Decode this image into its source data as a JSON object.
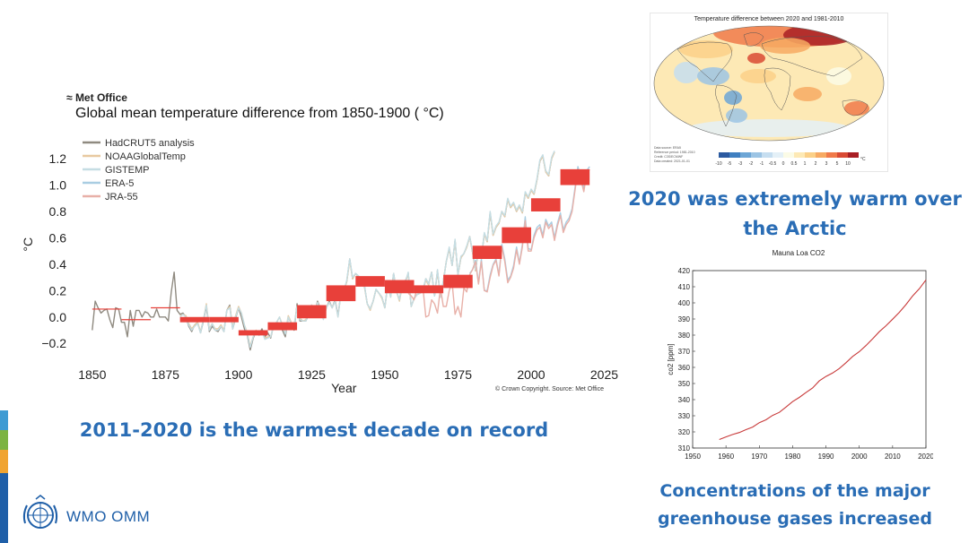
{
  "header": {
    "brand": "Met Office",
    "title": "Global mean temperature difference from 1850-1900 ( °C)"
  },
  "credit": "© Crown Copyright. Source: Met Office",
  "headlines": {
    "decade": "2011-2020 is the warmest decade on record",
    "arctic": "2020 was extremely warm over the Arctic",
    "ghg": "Concentrations of the major greenhouse gases increased"
  },
  "footer": {
    "org": "WMO OMM"
  },
  "colors": {
    "accent": "#2a6db5",
    "decade_bar": "#e8403a",
    "co2_line": "#c83a3a"
  },
  "chart_data": [
    {
      "type": "line",
      "title": "Global mean temperature difference from 1850-1900 ( °C)",
      "xlabel": "Year",
      "ylabel": "°C",
      "xlim": [
        1843,
        2027
      ],
      "ylim": [
        -0.28,
        1.35
      ],
      "xticks": [
        1850,
        1875,
        1900,
        1925,
        1950,
        1975,
        2000,
        2025
      ],
      "yticks": [
        -0.2,
        0.0,
        0.2,
        0.4,
        0.6,
        0.8,
        1.0,
        1.2
      ],
      "ytick_labels": [
        "−0.2",
        "0.0",
        "0.2",
        "0.4",
        "0.6",
        "0.8",
        "1.0",
        "1.2"
      ],
      "legend": [
        "HadCRUT5 analysis",
        "NOAAGlobalTemp",
        "GISTEMP",
        "ERA-5",
        "JRA-55"
      ],
      "legend_position": "top-left",
      "series": [
        {
          "name": "HadCRUT5 analysis",
          "color": "#8f8a80",
          "start_year": 1850,
          "values": [
            -0.1,
            0.12,
            0.07,
            0.03,
            0.05,
            0.06,
            -0.02,
            -0.08,
            0.07,
            0.06,
            -0.04,
            -0.04,
            -0.15,
            0.05,
            -0.07,
            0.05,
            0.05,
            0.0,
            0.04,
            0.03,
            0.0,
            0.0,
            0.06,
            0.0,
            0.0,
            0.0,
            -0.03,
            0.19,
            0.34,
            0.05,
            0.02,
            0.03,
            0.0,
            -0.07,
            -0.11,
            -0.06,
            -0.04,
            -0.12,
            -0.03,
            0.08,
            -0.11,
            -0.07,
            -0.1,
            -0.11,
            -0.07,
            -0.11,
            0.05,
            0.09,
            -0.09,
            -0.01,
            0.07,
            0.0,
            -0.09,
            -0.14,
            -0.25,
            -0.16,
            -0.11,
            -0.13,
            -0.09,
            -0.15,
            -0.12,
            -0.16,
            -0.06,
            -0.04,
            -0.05,
            -0.1,
            -0.15,
            0.0,
            -0.05,
            -0.1,
            0.1,
            -0.03,
            -0.03,
            -0.03,
            0.02,
            0.09,
            0.03,
            0.12,
            0.06,
            -0.01,
            0.07,
            0.12,
            0.07,
            0.13,
            0.01,
            0.18,
            0.2,
            0.27,
            0.44,
            0.29,
            0.33,
            0.31,
            0.25,
            0.24,
            0.1,
            0.06,
            0.12,
            0.21,
            0.18,
            0.15,
            0.07,
            0.25,
            0.16,
            0.33,
            0.19,
            0.13,
            0.25,
            0.27,
            0.33,
            0.08,
            0.14,
            0.17,
            0.18,
            0.2,
            0.29,
            0.25,
            0.34,
            0.16,
            0.35,
            0.15,
            0.27,
            0.42,
            0.52,
            0.39,
            0.58,
            0.32,
            0.45,
            0.48,
            0.53,
            0.61,
            0.49,
            0.35,
            0.52,
            0.45,
            0.63,
            0.57,
            0.79,
            0.62,
            0.68,
            0.71,
            0.8,
            0.76,
            0.89,
            0.83,
            0.86,
            0.8,
            0.84,
            0.79,
            0.94,
            0.9,
            0.96,
            0.93,
            1.04,
            1.18,
            1.22,
            1.1,
            1.07,
            1.2,
            1.25
          ]
        },
        {
          "name": "NOAAGlobalTemp",
          "color": "#e8c9a0",
          "start_year": 1880,
          "values": [
            0.01,
            0.02,
            0.01,
            -0.05,
            -0.09,
            -0.06,
            -0.04,
            -0.11,
            -0.02,
            0.1,
            -0.09,
            -0.05,
            -0.09,
            -0.09,
            -0.06,
            -0.1,
            0.05,
            0.08,
            -0.08,
            0.01,
            0.08,
            0.03,
            -0.06,
            -0.12,
            -0.22,
            -0.15,
            -0.1,
            -0.13,
            -0.11,
            -0.16,
            -0.15,
            -0.15,
            -0.06,
            -0.04,
            0.0,
            -0.06,
            -0.12,
            0.01,
            -0.04,
            -0.06,
            0.08,
            -0.01,
            -0.03,
            -0.02,
            0.03,
            0.09,
            0.03,
            0.11,
            0.05,
            -0.01,
            0.07,
            0.11,
            0.07,
            0.12,
            0.0,
            0.18,
            0.2,
            0.27,
            0.43,
            0.29,
            0.33,
            0.3,
            0.24,
            0.23,
            0.1,
            0.05,
            0.12,
            0.21,
            0.18,
            0.14,
            0.07,
            0.24,
            0.15,
            0.32,
            0.19,
            0.12,
            0.24,
            0.26,
            0.33,
            0.08,
            0.14,
            0.17,
            0.18,
            0.2,
            0.28,
            0.24,
            0.34,
            0.16,
            0.35,
            0.15,
            0.27,
            0.42,
            0.52,
            0.39,
            0.58,
            0.32,
            0.45,
            0.48,
            0.53,
            0.61,
            0.49,
            0.35,
            0.52,
            0.45,
            0.63,
            0.57,
            0.79,
            0.62,
            0.68,
            0.71,
            0.8,
            0.76,
            0.89,
            0.83,
            0.86,
            0.8,
            0.84,
            0.79,
            0.94,
            0.9,
            0.96,
            0.93,
            1.04,
            1.18,
            1.22,
            1.1,
            1.07,
            1.2,
            1.25
          ]
        },
        {
          "name": "GISTEMP",
          "color": "#c5dde3",
          "start_year": 1880,
          "values": [
            0.0,
            0.02,
            0.0,
            -0.06,
            -0.1,
            -0.07,
            -0.05,
            -0.12,
            -0.02,
            0.09,
            -0.1,
            -0.05,
            -0.1,
            -0.1,
            -0.07,
            -0.11,
            0.05,
            0.07,
            -0.09,
            0.0,
            0.07,
            0.03,
            -0.06,
            -0.13,
            -0.23,
            -0.15,
            -0.11,
            -0.14,
            -0.11,
            -0.17,
            -0.16,
            -0.15,
            -0.06,
            -0.04,
            0.0,
            -0.07,
            -0.13,
            0.0,
            -0.05,
            -0.07,
            0.08,
            -0.02,
            -0.03,
            -0.03,
            0.03,
            0.09,
            0.03,
            0.11,
            0.05,
            -0.02,
            0.07,
            0.11,
            0.07,
            0.12,
            0.0,
            0.18,
            0.2,
            0.28,
            0.44,
            0.3,
            0.33,
            0.31,
            0.25,
            0.24,
            0.1,
            0.06,
            0.12,
            0.21,
            0.18,
            0.15,
            0.07,
            0.25,
            0.15,
            0.33,
            0.19,
            0.13,
            0.25,
            0.26,
            0.34,
            0.08,
            0.14,
            0.17,
            0.18,
            0.21,
            0.29,
            0.25,
            0.34,
            0.16,
            0.36,
            0.15,
            0.27,
            0.42,
            0.53,
            0.39,
            0.59,
            0.32,
            0.46,
            0.48,
            0.54,
            0.61,
            0.5,
            0.36,
            0.53,
            0.45,
            0.64,
            0.58,
            0.8,
            0.63,
            0.69,
            0.72,
            0.8,
            0.77,
            0.9,
            0.84,
            0.87,
            0.81,
            0.85,
            0.8,
            0.95,
            0.91,
            0.97,
            0.94,
            1.05,
            1.19,
            1.23,
            1.11,
            1.08,
            1.21,
            1.26
          ]
        },
        {
          "name": "ERA-5",
          "color": "#a9cde2",
          "start_year": 1979,
          "values": [
            0.33,
            0.36,
            0.43,
            0.26,
            0.44,
            0.2,
            0.2,
            0.32,
            0.4,
            0.44,
            0.32,
            0.55,
            0.44,
            0.28,
            0.31,
            0.39,
            0.53,
            0.41,
            0.55,
            0.76,
            0.52,
            0.51,
            0.62,
            0.68,
            0.7,
            0.62,
            0.74,
            0.69,
            0.72,
            0.6,
            0.71,
            0.79,
            0.66,
            0.72,
            0.75,
            0.82,
            0.98,
            1.14,
            1.06,
            0.97,
            1.11,
            1.14
          ]
        },
        {
          "name": "JRA-55",
          "color": "#e8b0a8",
          "start_year": 1958,
          "values": [
            0.18,
            0.16,
            0.13,
            0.22,
            0.2,
            0.23,
            0.0,
            0.01,
            0.13,
            0.1,
            0.03,
            0.22,
            0.08,
            0.08,
            0.2,
            0.26,
            0.02,
            0.08,
            0.0,
            0.22,
            0.19,
            0.32,
            0.36,
            0.42,
            0.25,
            0.42,
            0.2,
            0.19,
            0.3,
            0.39,
            0.43,
            0.31,
            0.53,
            0.42,
            0.26,
            0.3,
            0.37,
            0.51,
            0.4,
            0.53,
            0.73,
            0.5,
            0.5,
            0.6,
            0.66,
            0.68,
            0.6,
            0.72,
            0.67,
            0.7,
            0.58,
            0.69,
            0.77,
            0.64,
            0.7,
            0.73,
            0.8,
            0.96,
            1.12,
            1.04,
            0.95,
            1.09,
            1.12
          ]
        }
      ],
      "decade_means": [
        {
          "start": 1850,
          "end": 1860,
          "value": 0.06
        },
        {
          "start": 1860,
          "end": 1870,
          "value": -0.02
        },
        {
          "start": 1870,
          "end": 1880,
          "value": 0.07
        },
        {
          "start": 1880,
          "end": 1890,
          "value": -0.02,
          "low": -0.04,
          "high": 0.0
        },
        {
          "start": 1890,
          "end": 1900,
          "value": -0.02,
          "low": -0.04,
          "high": 0.0
        },
        {
          "start": 1900,
          "end": 1910,
          "value": -0.12,
          "low": -0.14,
          "high": -0.1
        },
        {
          "start": 1910,
          "end": 1920,
          "value": -0.07,
          "low": -0.1,
          "high": -0.04
        },
        {
          "start": 1920,
          "end": 1930,
          "value": 0.04,
          "low": -0.01,
          "high": 0.09
        },
        {
          "start": 1930,
          "end": 1940,
          "value": 0.18,
          "low": 0.12,
          "high": 0.24
        },
        {
          "start": 1940,
          "end": 1950,
          "value": 0.27,
          "low": 0.23,
          "high": 0.31
        },
        {
          "start": 1950,
          "end": 1960,
          "value": 0.23,
          "low": 0.18,
          "high": 0.28
        },
        {
          "start": 1960,
          "end": 1970,
          "value": 0.21,
          "low": 0.18,
          "high": 0.24
        },
        {
          "start": 1970,
          "end": 1980,
          "value": 0.27,
          "low": 0.22,
          "high": 0.32
        },
        {
          "start": 1980,
          "end": 1990,
          "value": 0.49,
          "low": 0.44,
          "high": 0.54
        },
        {
          "start": 1990,
          "end": 2000,
          "value": 0.62,
          "low": 0.56,
          "high": 0.68
        },
        {
          "start": 2000,
          "end": 2010,
          "value": 0.85,
          "low": 0.8,
          "high": 0.9
        },
        {
          "start": 2010,
          "end": 2020,
          "value": 1.06,
          "low": 1.0,
          "high": 1.12
        }
      ]
    },
    {
      "type": "line",
      "title": "Mauna Loa CO2",
      "xlabel": "",
      "ylabel": "co2 [ppm]",
      "xlim": [
        1950,
        2020
      ],
      "ylim": [
        310,
        420
      ],
      "xticks": [
        1950,
        1960,
        1970,
        1980,
        1990,
        2000,
        2010,
        2020
      ],
      "yticks": [
        310,
        320,
        330,
        340,
        350,
        360,
        370,
        380,
        390,
        400,
        410,
        420
      ],
      "x": [
        1958,
        1960,
        1962,
        1964,
        1966,
        1968,
        1970,
        1972,
        1974,
        1976,
        1978,
        1980,
        1982,
        1984,
        1986,
        1988,
        1990,
        1992,
        1994,
        1996,
        1998,
        2000,
        2002,
        2004,
        2006,
        2008,
        2010,
        2012,
        2014,
        2016,
        2018,
        2020
      ],
      "values": [
        315.3,
        316.9,
        318.4,
        319.6,
        321.4,
        323.0,
        325.7,
        327.5,
        330.2,
        332.1,
        335.4,
        338.8,
        341.4,
        344.4,
        347.2,
        351.6,
        354.4,
        356.5,
        359.3,
        362.9,
        366.8,
        369.7,
        373.5,
        377.7,
        382.1,
        385.8,
        389.9,
        394.1,
        398.9,
        404.2,
        408.7,
        414.2
      ]
    },
    {
      "type": "heatmap",
      "title": "Temperature difference between 2020 and 1981-2010",
      "notes": [
        "Data source: ERA5",
        "Reference period: 1981-2010",
        "Credit: C3S/ECMWF",
        "Data created: 2021-01-01"
      ],
      "legend": [
        "-10",
        "-5",
        "-3",
        "-2",
        "-1",
        "-0.5",
        "0",
        "0.5",
        "1",
        "2",
        "3",
        "5",
        "10"
      ],
      "unit": "°C",
      "colorscale": [
        "#2b5aa0",
        "#3f7fc0",
        "#6da6d6",
        "#9cc4e4",
        "#c6def0",
        "#e4f0f7",
        "#fbfbe6",
        "#fde9b5",
        "#fbd088",
        "#f7aa63",
        "#f07a4a",
        "#d94a34",
        "#a91e24"
      ]
    }
  ]
}
